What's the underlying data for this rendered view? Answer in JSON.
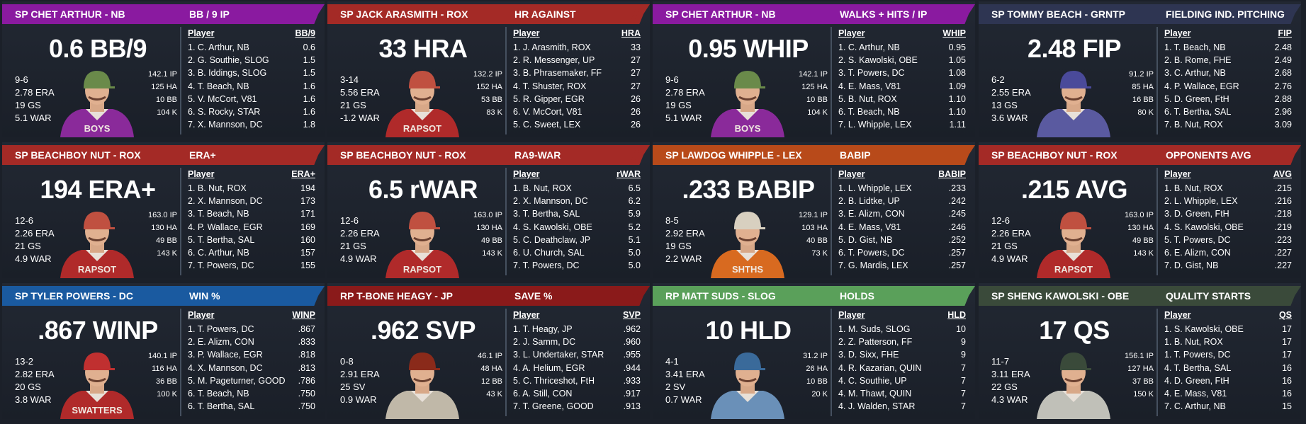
{
  "cards": [
    {
      "player": "SP CHET ARTHUR - NB",
      "category": "BB / 9 IP",
      "big": "0.6 BB/9",
      "record": "9-6",
      "era": "2.78 ERA",
      "gp": "19 GS",
      "war": "5.1 WAR",
      "side": [
        "142.1 IP",
        "125 HA",
        "10 BB",
        "104 K"
      ],
      "col_player": "Player",
      "col_stat": "BB/9",
      "rows": [
        [
          "1. C. Arthur, NB",
          "0.6"
        ],
        [
          "2. G. Southie, SLOG",
          "1.5"
        ],
        [
          "3. B. Iddings, SLOG",
          "1.5"
        ],
        [
          "4. T. Beach, NB",
          "1.6"
        ],
        [
          "5. V. McCort, V81",
          "1.6"
        ],
        [
          "6. S. Rocky, STAR",
          "1.6"
        ],
        [
          "7. X. Mannson, DC",
          "1.8"
        ]
      ],
      "banner_color": "#8a1aa0",
      "jersey_color": "#8a2a9a",
      "jersey_text": "BOYS",
      "hat_color": "#6a8a4a"
    },
    {
      "player": "SP JACK ARASMITH - ROX",
      "category": "HR AGAINST",
      "big": "33 HRA",
      "record": "3-14",
      "era": "5.56 ERA",
      "gp": "21 GS",
      "war": "-1.2 WAR",
      "side": [
        "132.2 IP",
        "152 HA",
        "53 BB",
        "83 K"
      ],
      "col_player": "Player",
      "col_stat": "HRA",
      "rows": [
        [
          "1. J. Arasmith, ROX",
          "33"
        ],
        [
          "2. R. Messenger, UP",
          "27"
        ],
        [
          "3. B. Phrasemaker, FF",
          "27"
        ],
        [
          "4. T. Shuster, ROX",
          "27"
        ],
        [
          "5. R. Gipper, EGR",
          "26"
        ],
        [
          "6. V. McCort, V81",
          "26"
        ],
        [
          "5. C. Sweet, LEX",
          "26"
        ]
      ],
      "banner_color": "#a42a26",
      "jersey_color": "#b02a2a",
      "jersey_text": "RAPSOT",
      "hat_color": "#c05040"
    },
    {
      "player": "SP CHET ARTHUR - NB",
      "category": "WALKS + HITS / IP",
      "big": "0.95 WHIP",
      "record": "9-6",
      "era": "2.78 ERA",
      "gp": "19 GS",
      "war": "5.1 WAR",
      "side": [
        "142.1 IP",
        "125 HA",
        "10 BB",
        "104 K"
      ],
      "col_player": "Player",
      "col_stat": "WHIP",
      "rows": [
        [
          "1. C. Arthur, NB",
          "0.95"
        ],
        [
          "2. S. Kawolski, OBE",
          "1.05"
        ],
        [
          "3. T. Powers, DC",
          "1.08"
        ],
        [
          "4. E. Mass, V81",
          "1.09"
        ],
        [
          "5. B. Nut, ROX",
          "1.10"
        ],
        [
          "6. T. Beach, NB",
          "1.10"
        ],
        [
          "7. L. Whipple, LEX",
          "1.11"
        ]
      ],
      "banner_color": "#8a1aa0",
      "jersey_color": "#8a2a9a",
      "jersey_text": "BOYS",
      "hat_color": "#6a8a4a"
    },
    {
      "player": "SP TOMMY BEACH - GRNTP",
      "category": "FIELDING IND. PITCHING",
      "big": "2.48 FIP",
      "record": "6-2",
      "era": "2.55 ERA",
      "gp": "13 GS",
      "war": "3.6 WAR",
      "side": [
        "91.2 IP",
        "85 HA",
        "16 BB",
        "80 K"
      ],
      "col_player": "Player",
      "col_stat": "FIP",
      "rows": [
        [
          "1. T. Beach, NB",
          "2.48"
        ],
        [
          "2. B. Rome, FHE",
          "2.49"
        ],
        [
          "3. C. Arthur, NB",
          "2.68"
        ],
        [
          "4. P. Wallace, EGR",
          "2.76"
        ],
        [
          "5. D. Green, FtH",
          "2.88"
        ],
        [
          "6. T. Bertha, SAL",
          "2.96"
        ],
        [
          "7. B. Nut, ROX",
          "3.09"
        ]
      ],
      "banner_color": "#2e3552",
      "jersey_color": "#5a5aa0",
      "jersey_text": "",
      "hat_color": "#4a4a9a"
    },
    {
      "player": "SP BEACHBOY NUT - ROX",
      "category": "ERA+",
      "big": "194 ERA+",
      "record": "12-6",
      "era": "2.26 ERA",
      "gp": "21 GS",
      "war": "4.9 WAR",
      "side": [
        "163.0 IP",
        "130 HA",
        "49 BB",
        "143 K"
      ],
      "col_player": "Player",
      "col_stat": "ERA+",
      "rows": [
        [
          "1. B. Nut, ROX",
          "194"
        ],
        [
          "2. X. Mannson, DC",
          "173"
        ],
        [
          "3. T. Beach, NB",
          "171"
        ],
        [
          "4. P. Wallace, EGR",
          "169"
        ],
        [
          "5. T. Bertha, SAL",
          "160"
        ],
        [
          "6. C. Arthur, NB",
          "157"
        ],
        [
          "7. T. Powers, DC",
          "155"
        ]
      ],
      "banner_color": "#a42a26",
      "jersey_color": "#b02a2a",
      "jersey_text": "RAPSOT",
      "hat_color": "#c05040"
    },
    {
      "player": "SP BEACHBOY NUT - ROX",
      "category": "RA9-WAR",
      "big": "6.5 rWAR",
      "record": "12-6",
      "era": "2.26 ERA",
      "gp": "21 GS",
      "war": "4.9 WAR",
      "side": [
        "163.0 IP",
        "130 HA",
        "49 BB",
        "143 K"
      ],
      "col_player": "Player",
      "col_stat": "rWAR",
      "rows": [
        [
          "1. B. Nut, ROX",
          "6.5"
        ],
        [
          "2. X. Mannson, DC",
          "6.2"
        ],
        [
          "3. T. Bertha, SAL",
          "5.9"
        ],
        [
          "4. S. Kawolski, OBE",
          "5.2"
        ],
        [
          "5. C. Deathclaw, JP",
          "5.1"
        ],
        [
          "6. U. Church, SAL",
          "5.0"
        ],
        [
          "7. T. Powers, DC",
          "5.0"
        ]
      ],
      "banner_color": "#a42a26",
      "jersey_color": "#b02a2a",
      "jersey_text": "RAPSOT",
      "hat_color": "#c05040"
    },
    {
      "player": "SP LAWDOG WHIPPLE - LEX",
      "category": "BABIP",
      "big": ".233 BABIP",
      "record": "8-5",
      "era": "2.92 ERA",
      "gp": "19 GS",
      "war": "2.2 WAR",
      "side": [
        "129.1 IP",
        "103 HA",
        "40 BB",
        "73 K"
      ],
      "col_player": "Player",
      "col_stat": "BABIP",
      "rows": [
        [
          "1. L. Whipple, LEX",
          ".233"
        ],
        [
          "2. B. Lidtke, UP",
          ".242"
        ],
        [
          "3. E. Alizm, CON",
          ".245"
        ],
        [
          "4. E. Mass, V81",
          ".246"
        ],
        [
          "5. D. Gist, NB",
          ".252"
        ],
        [
          "6. T. Powers, DC",
          ".257"
        ],
        [
          "7. G. Mardis, LEX",
          ".257"
        ]
      ],
      "banner_color": "#b84a1a",
      "jersey_color": "#d86a20",
      "jersey_text": "SHTHS",
      "hat_color": "#d8d0c0"
    },
    {
      "player": "SP BEACHBOY NUT - ROX",
      "category": "OPPONENTS AVG",
      "big": ".215 AVG",
      "record": "12-6",
      "era": "2.26 ERA",
      "gp": "21 GS",
      "war": "4.9 WAR",
      "side": [
        "163.0 IP",
        "130 HA",
        "49 BB",
        "143 K"
      ],
      "col_player": "Player",
      "col_stat": "AVG",
      "rows": [
        [
          "1. B. Nut, ROX",
          ".215"
        ],
        [
          "2. L. Whipple, LEX",
          ".216"
        ],
        [
          "3. D. Green, FtH",
          ".218"
        ],
        [
          "4. S. Kawolski, OBE",
          ".219"
        ],
        [
          "5. T. Powers, DC",
          ".223"
        ],
        [
          "6. E. Alizm, CON",
          ".227"
        ],
        [
          "7. D. Gist, NB",
          ".227"
        ]
      ],
      "banner_color": "#a42a26",
      "jersey_color": "#b02a2a",
      "jersey_text": "RAPSOT",
      "hat_color": "#c05040"
    },
    {
      "player": "SP TYLER POWERS - DC",
      "category": "WIN %",
      "big": ".867 WINP",
      "record": "13-2",
      "era": "2.82 ERA",
      "gp": "20 GS",
      "war": "3.8 WAR",
      "side": [
        "140.1 IP",
        "116 HA",
        "36 BB",
        "100 K"
      ],
      "col_player": "Player",
      "col_stat": "WINP",
      "rows": [
        [
          "1. T. Powers, DC",
          ".867"
        ],
        [
          "2. E. Alizm, CON",
          ".833"
        ],
        [
          "3. P. Wallace, EGR",
          ".818"
        ],
        [
          "4. X. Mannson, DC",
          ".813"
        ],
        [
          "5. M. Pageturner, GOOD",
          ".786"
        ],
        [
          "6. T. Beach, NB",
          ".750"
        ],
        [
          "6. T. Bertha, SAL",
          ".750"
        ]
      ],
      "banner_color": "#1a5aa0",
      "jersey_color": "#b02a2a",
      "jersey_text": "SWATTERS",
      "hat_color": "#c03030"
    },
    {
      "player": "RP T-BONE HEAGY - JP",
      "category": "SAVE %",
      "big": ".962 SVP",
      "record": "0-8",
      "era": "2.91 ERA",
      "gp": "25 SV",
      "war": "0.9 WAR",
      "side": [
        "46.1 IP",
        "48 HA",
        "12 BB",
        "43 K"
      ],
      "col_player": "Player",
      "col_stat": "SVP",
      "rows": [
        [
          "1. T. Heagy, JP",
          ".962"
        ],
        [
          "2. J. Samm, DC",
          ".960"
        ],
        [
          "3. L. Undertaker, STAR",
          ".955"
        ],
        [
          "4. A. Helium, EGR",
          ".944"
        ],
        [
          "5. C. Thriceshot, FtH",
          ".933"
        ],
        [
          "6. A. Still, CON",
          ".917"
        ],
        [
          "7. T. Greene, GOOD",
          ".913"
        ]
      ],
      "banner_color": "#8a1a1a",
      "jersey_color": "#c0b8a8",
      "jersey_text": "",
      "hat_color": "#8a2a1a"
    },
    {
      "player": "RP MATT SUDS - SLOG",
      "category": "HOLDS",
      "big": "10 HLD",
      "record": "4-1",
      "era": "3.41 ERA",
      "gp": "2 SV",
      "war": "0.7 WAR",
      "side": [
        "31.2 IP",
        "26 HA",
        "10 BB",
        "20 K"
      ],
      "col_player": "Player",
      "col_stat": "HLD",
      "rows": [
        [
          "1. M. Suds, SLOG",
          "10"
        ],
        [
          "2. Z. Patterson, FF",
          "9"
        ],
        [
          "3. D. Sixx, FHE",
          "9"
        ],
        [
          "4. R. Kazarian, QUIN",
          "7"
        ],
        [
          "4. C. Southie, UP",
          "7"
        ],
        [
          "4. M. Thawt, QUIN",
          "7"
        ],
        [
          "4. J. Walden, STAR",
          "7"
        ]
      ],
      "banner_color": "#5aa05a",
      "jersey_color": "#6a90b8",
      "jersey_text": "",
      "hat_color": "#3a6a9a"
    },
    {
      "player": "SP SHENG KAWOLSKI - OBE",
      "category": "QUALITY STARTS",
      "big": "17 QS",
      "record": "11-7",
      "era": "3.11 ERA",
      "gp": "22 GS",
      "war": "4.3 WAR",
      "side": [
        "156.1 IP",
        "127 HA",
        "37 BB",
        "150 K"
      ],
      "col_player": "Player",
      "col_stat": "QS",
      "rows": [
        [
          "1. S. Kawolski, OBE",
          "17"
        ],
        [
          "1. B. Nut, ROX",
          "17"
        ],
        [
          "1. T. Powers, DC",
          "17"
        ],
        [
          "4. T. Bertha, SAL",
          "16"
        ],
        [
          "4. D. Green, FtH",
          "16"
        ],
        [
          "4. E. Mass, V81",
          "16"
        ],
        [
          "7. C. Arthur, NB",
          "15"
        ]
      ],
      "banner_color": "#3a4a3a",
      "jersey_color": "#c0c0b8",
      "jersey_text": "",
      "hat_color": "#3a4a3a"
    }
  ]
}
